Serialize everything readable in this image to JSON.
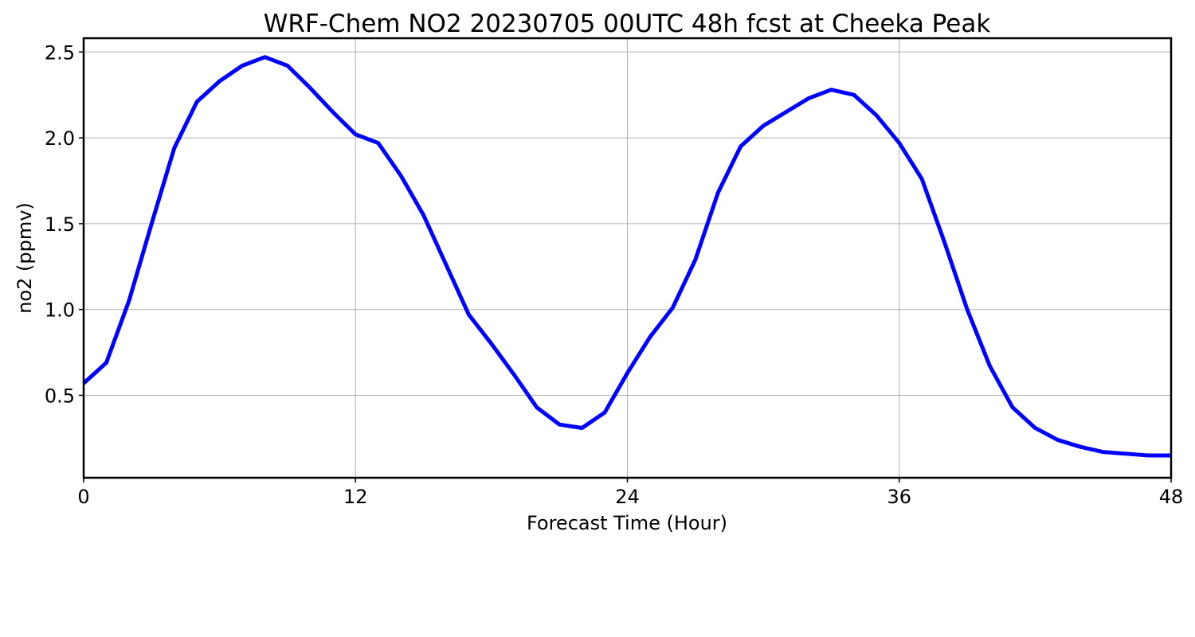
{
  "chart_data": {
    "type": "line",
    "title": "WRF-Chem NO2  20230705 00UTC 48h fcst at Cheeka Peak",
    "xlabel": "Forecast Time (Hour)",
    "ylabel": "no2  (ppmv)",
    "xlim": [
      0,
      48
    ],
    "ylim": [
      0.02,
      2.58
    ],
    "xticks": [
      0,
      12,
      24,
      36,
      48
    ],
    "xtick_labels": [
      "0",
      "12",
      "24",
      "36",
      "48"
    ],
    "yticks": [
      0.5,
      1.0,
      1.5,
      2.0,
      2.5
    ],
    "ytick_labels": [
      "0.5",
      "1.0",
      "1.5",
      "2.0",
      "2.5"
    ],
    "grid": true,
    "line_color": "#0000ff",
    "series": [
      {
        "x": [
          0,
          1,
          2,
          3,
          4,
          5,
          6,
          7,
          8,
          9,
          10,
          11,
          12,
          13,
          14,
          15,
          16,
          17,
          18,
          19,
          20,
          21,
          22,
          23,
          24,
          25,
          26,
          27,
          28,
          29,
          30,
          31,
          32,
          33,
          34,
          35,
          36,
          37,
          38,
          39,
          40,
          41,
          42,
          43,
          44,
          45,
          46,
          47,
          48
        ],
        "values": [
          0.57,
          0.69,
          1.05,
          1.5,
          1.94,
          2.21,
          2.33,
          2.42,
          2.47,
          2.42,
          2.29,
          2.15,
          2.02,
          1.97,
          1.78,
          1.55,
          1.26,
          0.97,
          0.8,
          0.62,
          0.43,
          0.33,
          0.31,
          0.4,
          0.63,
          0.84,
          1.01,
          1.29,
          1.68,
          1.95,
          2.07,
          2.15,
          2.23,
          2.28,
          2.25,
          2.13,
          1.97,
          1.76,
          1.39,
          1.0,
          0.67,
          0.43,
          0.31,
          0.24,
          0.2,
          0.17,
          0.16,
          0.15,
          0.15
        ]
      }
    ]
  }
}
